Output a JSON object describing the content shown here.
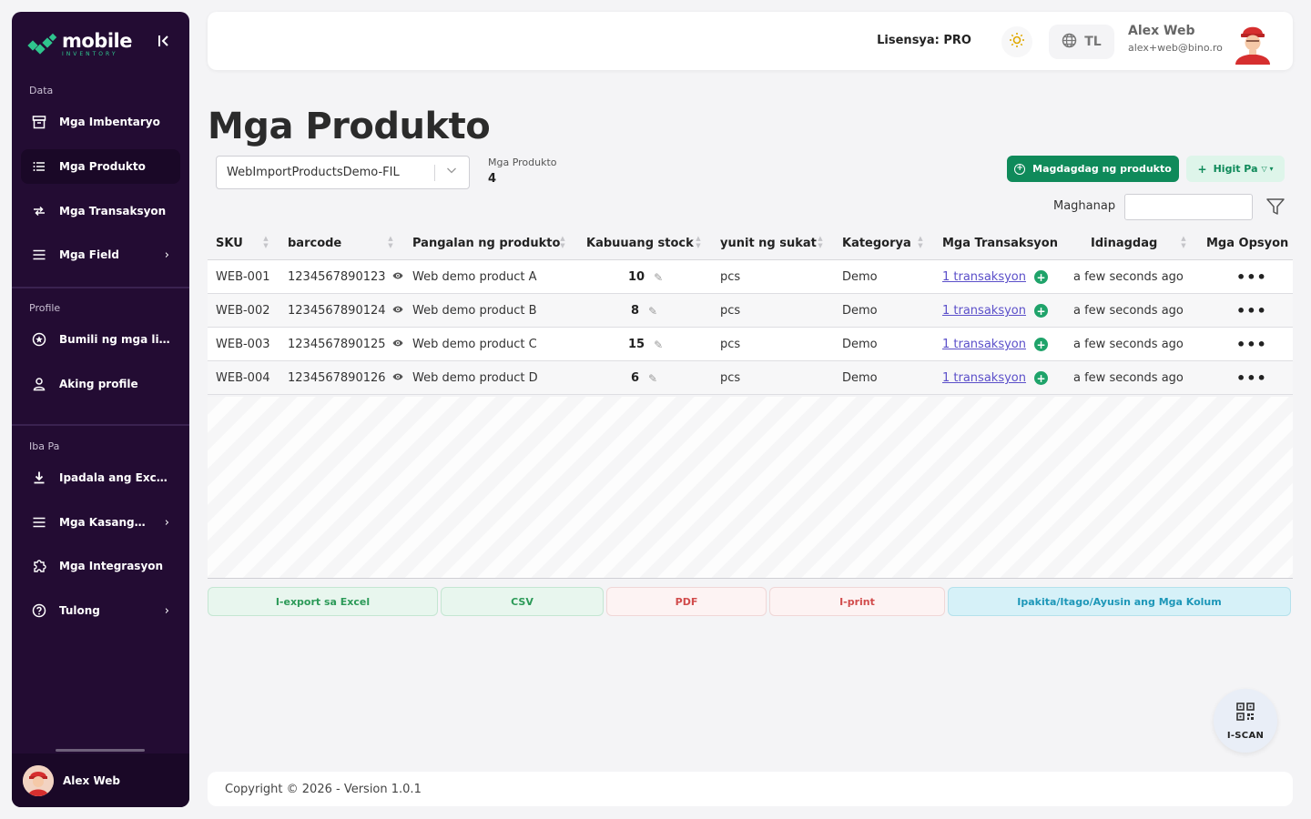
{
  "brand": {
    "name": "mobile",
    "sub": "INVENTORY"
  },
  "sidebar": {
    "sections": [
      {
        "label": "Data"
      },
      {
        "label": "Profile"
      },
      {
        "label": "Iba Pa"
      }
    ],
    "items": [
      {
        "label": "Mga Imbentaryo",
        "icon": "archive-icon"
      },
      {
        "label": "Mga Produkto",
        "icon": "list-icon",
        "active": true
      },
      {
        "label": "Mga Transaksyon",
        "icon": "swap-icon"
      },
      {
        "label": "Mga Field",
        "icon": "menu-icon"
      },
      {
        "label": "Bumili ng mga lisensya",
        "icon": "star-badge-icon"
      },
      {
        "label": "Aking profile",
        "icon": "user-icon"
      },
      {
        "label": "Ipadala ang Excel sa email",
        "icon": "download-icon"
      },
      {
        "label": "Mga Kasangkapan",
        "icon": "menu-icon"
      },
      {
        "label": "Mga Integrasyon",
        "icon": "puzzle-icon"
      },
      {
        "label": "Tulong",
        "icon": "help-circle-icon"
      }
    ],
    "footer_user": "Alex Web"
  },
  "header": {
    "license": "Lisensya: PRO",
    "language": "TL",
    "user_name": "Alex Web",
    "user_email": "alex+web@bino.ro"
  },
  "main": {
    "title": "Mga Produkto",
    "inventory_select": "WebImportProductsDemo-FIL",
    "count_label": "Mga Produkto",
    "count_value": "4",
    "add_button": "Magdagdag ng produkto",
    "more_button": "Higit Pa",
    "search_label": "Maghanap",
    "search_value": ""
  },
  "table": {
    "columns": [
      "SKU",
      "barcode",
      "Pangalan ng produkto",
      "Kabuuang stock",
      "yunit ng sukat",
      "Kategorya",
      "Mga Transaksyon",
      "Idinagdag",
      "Mga Opsyon"
    ],
    "rows": [
      {
        "sku": "WEB-001",
        "barcode": "1234567890123",
        "name": "Web demo product A",
        "stock": "10",
        "unit": "pcs",
        "category": "Demo",
        "transactions": "1 transaksyon",
        "added": "a few seconds ago"
      },
      {
        "sku": "WEB-002",
        "barcode": "1234567890124",
        "name": "Web demo product B",
        "stock": "8",
        "unit": "pcs",
        "category": "Demo",
        "transactions": "1 transaksyon",
        "added": "a few seconds ago"
      },
      {
        "sku": "WEB-003",
        "barcode": "1234567890125",
        "name": "Web demo product C",
        "stock": "15",
        "unit": "pcs",
        "category": "Demo",
        "transactions": "1 transaksyon",
        "added": "a few seconds ago"
      },
      {
        "sku": "WEB-004",
        "barcode": "1234567890126",
        "name": "Web demo product D",
        "stock": "6",
        "unit": "pcs",
        "category": "Demo",
        "transactions": "1 transaksyon",
        "added": "a few seconds ago"
      }
    ]
  },
  "export": {
    "excel": "I-export sa Excel",
    "csv": "CSV",
    "pdf": "PDF",
    "print": "I-print",
    "columns": "Ipakita/Itago/Ayusin ang Mga Kolum"
  },
  "scan_label": "I-SCAN",
  "footer": "Copyright © 2026 - Version 1.0.1",
  "colors": {
    "sidebar_bg": "#230c33",
    "accent_green": "#0f8a5a",
    "link": "#5b4fc9"
  }
}
